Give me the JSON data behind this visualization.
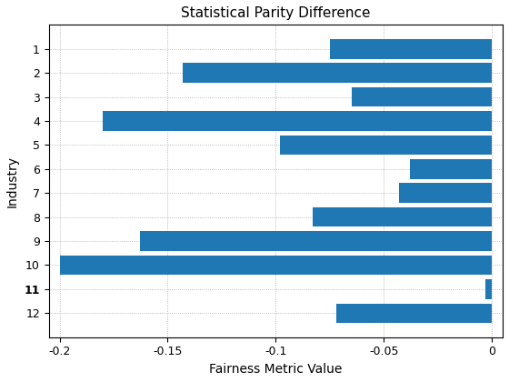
{
  "title": "Statistical Parity Difference",
  "xlabel": "Fairness Metric Value",
  "ylabel": "Industry",
  "categories": [
    "1",
    "2",
    "3",
    "4",
    "5",
    "6",
    "7",
    "8",
    "9",
    "10",
    "11",
    "12"
  ],
  "values": [
    -0.075,
    -0.143,
    -0.065,
    -0.18,
    -0.098,
    -0.038,
    -0.043,
    -0.083,
    -0.163,
    -0.2,
    -0.003,
    -0.072
  ],
  "bar_color": "#1f77b4",
  "xlim": [
    -0.205,
    0.005
  ],
  "xticks": [
    -0.2,
    -0.15,
    -0.1,
    -0.05,
    0.0
  ],
  "grid": true,
  "background_color": "#ffffff",
  "title_fontsize": 11,
  "label_fontsize": 10,
  "tick_fontsize": 9,
  "bold_label": "11"
}
